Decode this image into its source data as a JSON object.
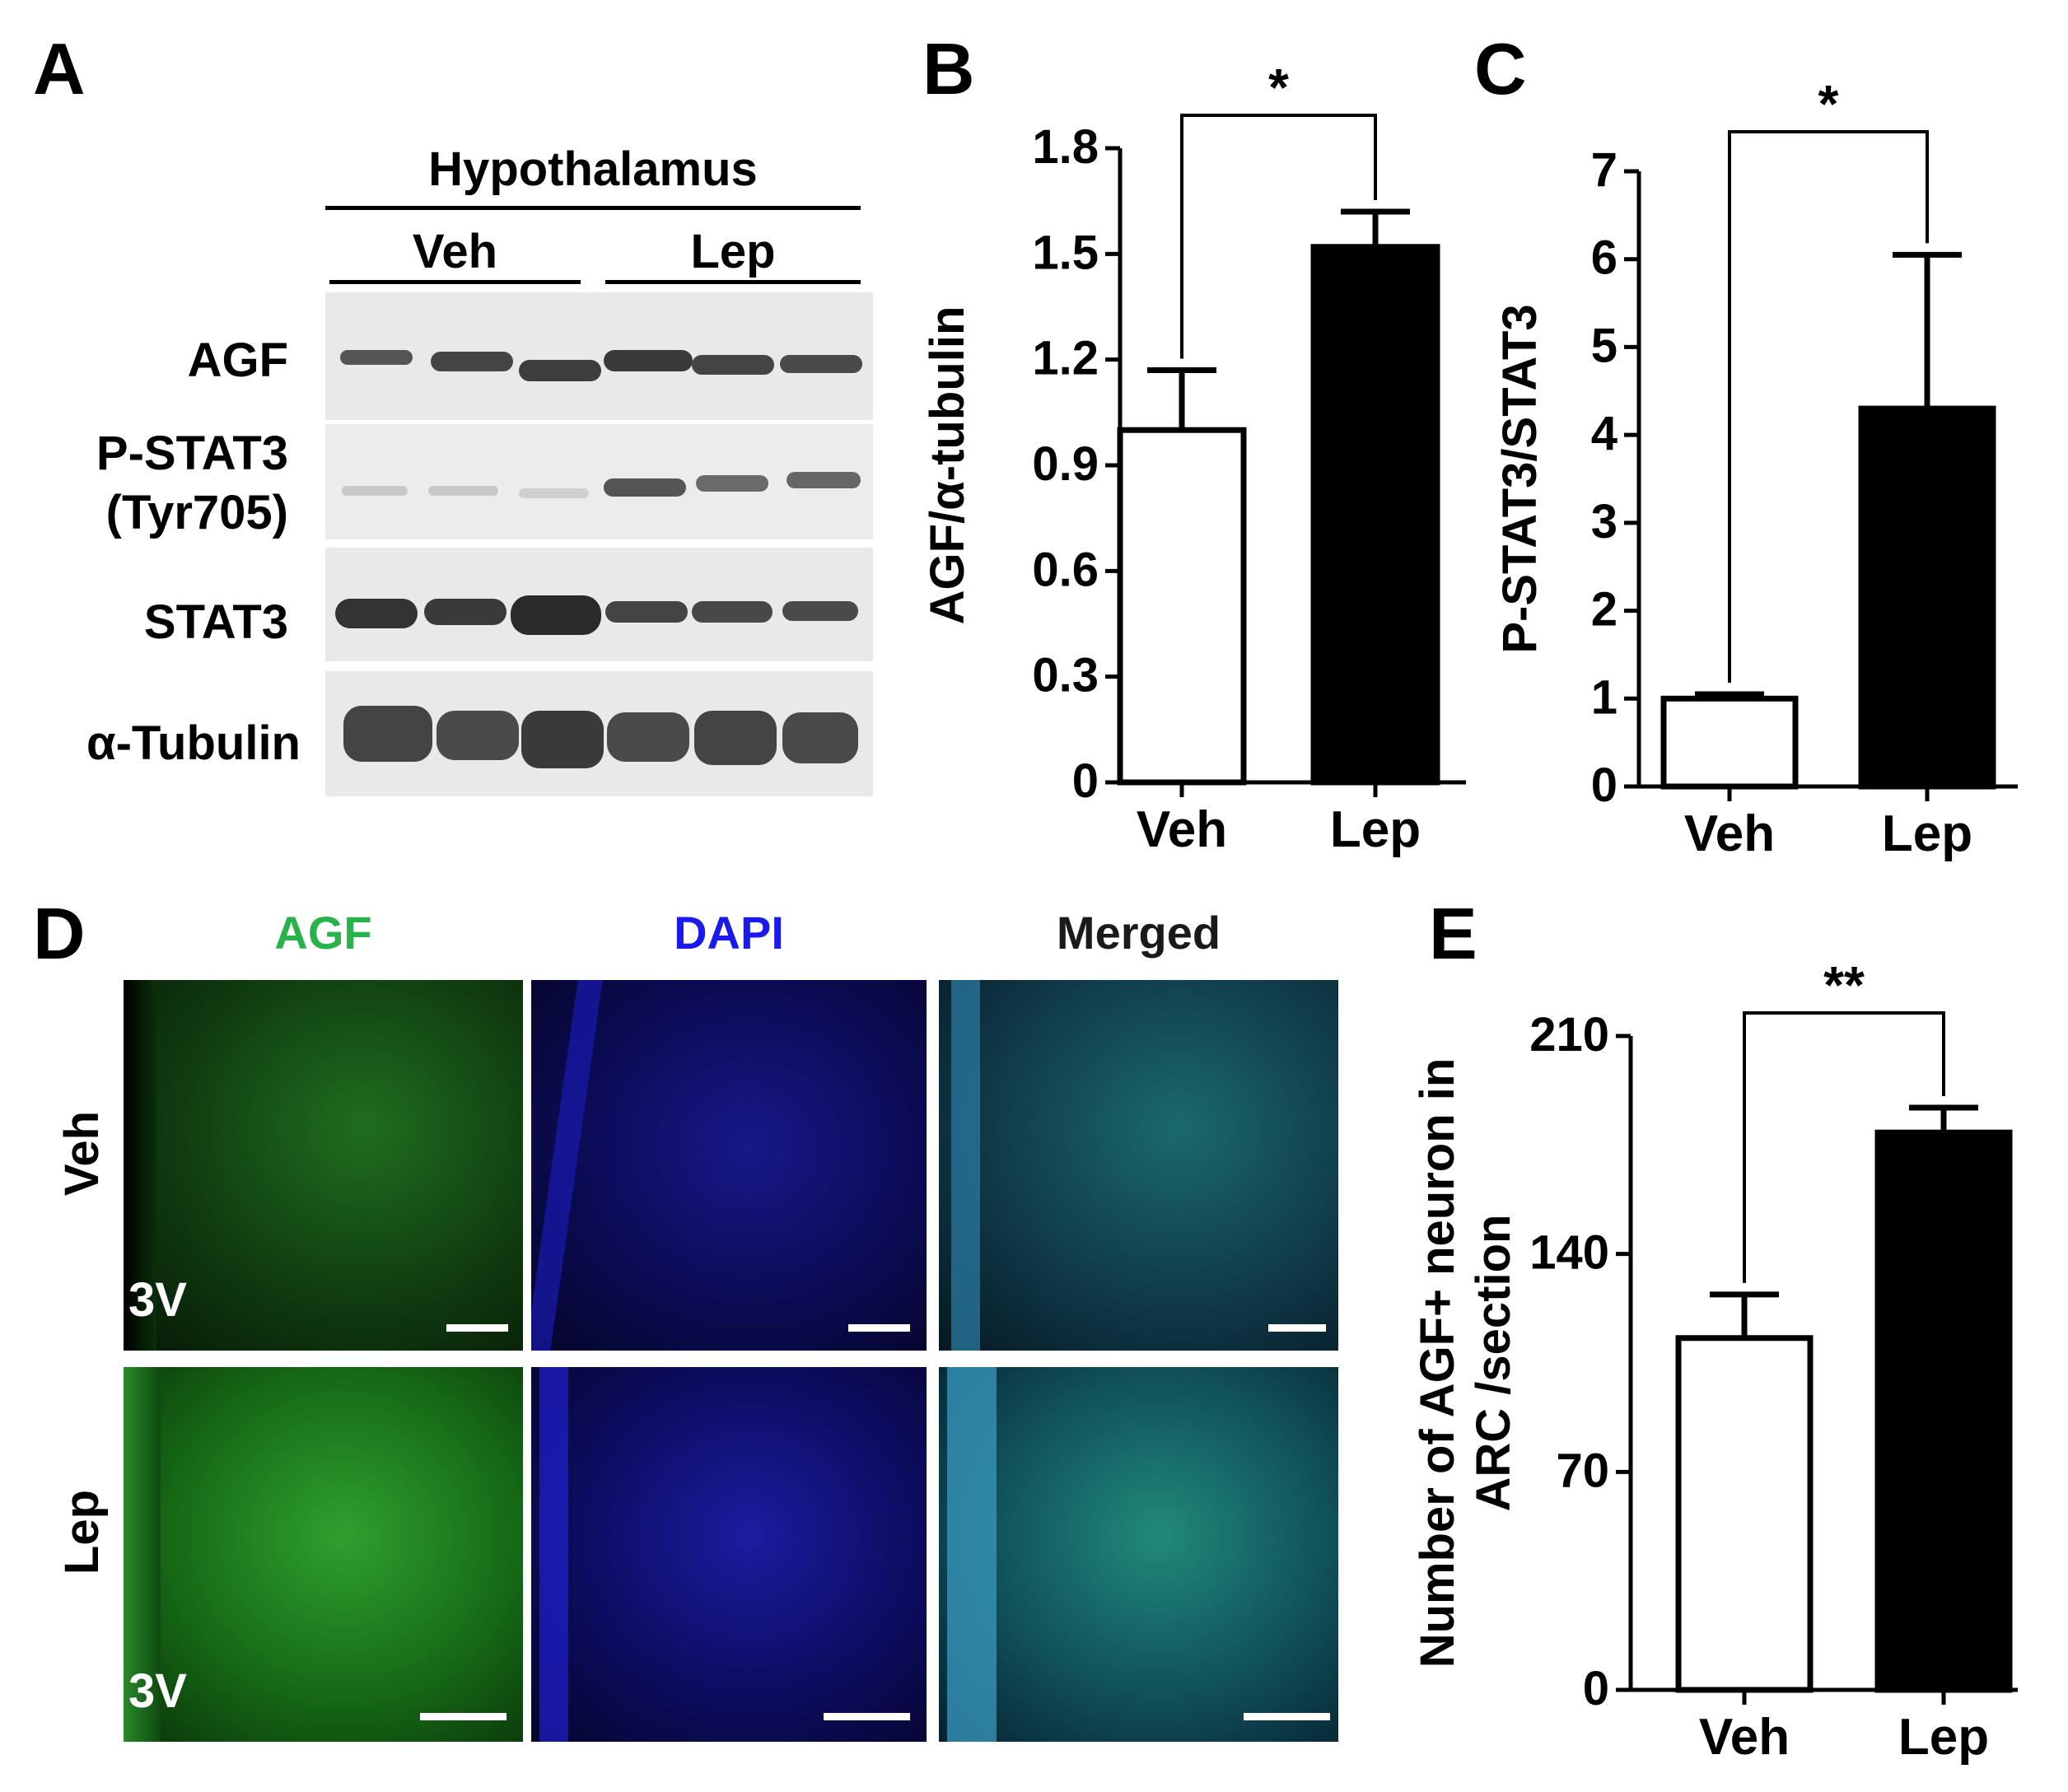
{
  "panels": {
    "A": {
      "letter": "A",
      "header": "Hypothalamus",
      "groups": [
        "Veh",
        "Lep"
      ],
      "rows": [
        {
          "label": "AGF"
        },
        {
          "label": "P-STAT3",
          "label2": "(Tyr705)"
        },
        {
          "label": "STAT3"
        },
        {
          "label": "α-Tubulin"
        }
      ]
    },
    "B": {
      "letter": "B"
    },
    "C": {
      "letter": "C"
    },
    "D": {
      "letter": "D",
      "channels": [
        "AGF",
        "DAPI",
        "Merged"
      ],
      "channel_colors": [
        "#27b34a",
        "#1a1aee",
        "#1a1a1a"
      ],
      "rows": [
        "Veh",
        "Lep"
      ],
      "ventricle_label": "3V"
    },
    "E": {
      "letter": "E"
    }
  },
  "chart_data": [
    {
      "panel": "B",
      "type": "bar",
      "categories": [
        "Veh",
        "Lep"
      ],
      "values": [
        1.0,
        1.52
      ],
      "errors": [
        0.17,
        0.1
      ],
      "colors": [
        "#ffffff",
        "#000000"
      ],
      "ylabel": "AGF/α-tubulin",
      "ylim": [
        0,
        1.8
      ],
      "yticks": [
        "0",
        "0.3",
        "0.6",
        "0.9",
        "1.2",
        "1.5",
        "1.8"
      ],
      "significance": "*"
    },
    {
      "panel": "C",
      "type": "bar",
      "categories": [
        "Veh",
        "Lep"
      ],
      "values": [
        1.0,
        4.3
      ],
      "errors": [
        0.05,
        1.75
      ],
      "colors": [
        "#ffffff",
        "#000000"
      ],
      "ylabel": "P-STAT3/STAT3",
      "ylim": [
        0,
        7
      ],
      "yticks": [
        "0",
        "1",
        "2",
        "3",
        "4",
        "5",
        "6",
        "7"
      ],
      "significance": "*"
    },
    {
      "panel": "E",
      "type": "bar",
      "categories": [
        "Veh",
        "Lep"
      ],
      "values": [
        113,
        179
      ],
      "errors": [
        14,
        8
      ],
      "colors": [
        "#ffffff",
        "#000000"
      ],
      "ylabel": "Number of AGF+ neuron in",
      "ylabel2": "ARC /section",
      "ylim": [
        0,
        210
      ],
      "yticks": [
        "0",
        "70",
        "140",
        "210"
      ],
      "significance": "**"
    }
  ]
}
